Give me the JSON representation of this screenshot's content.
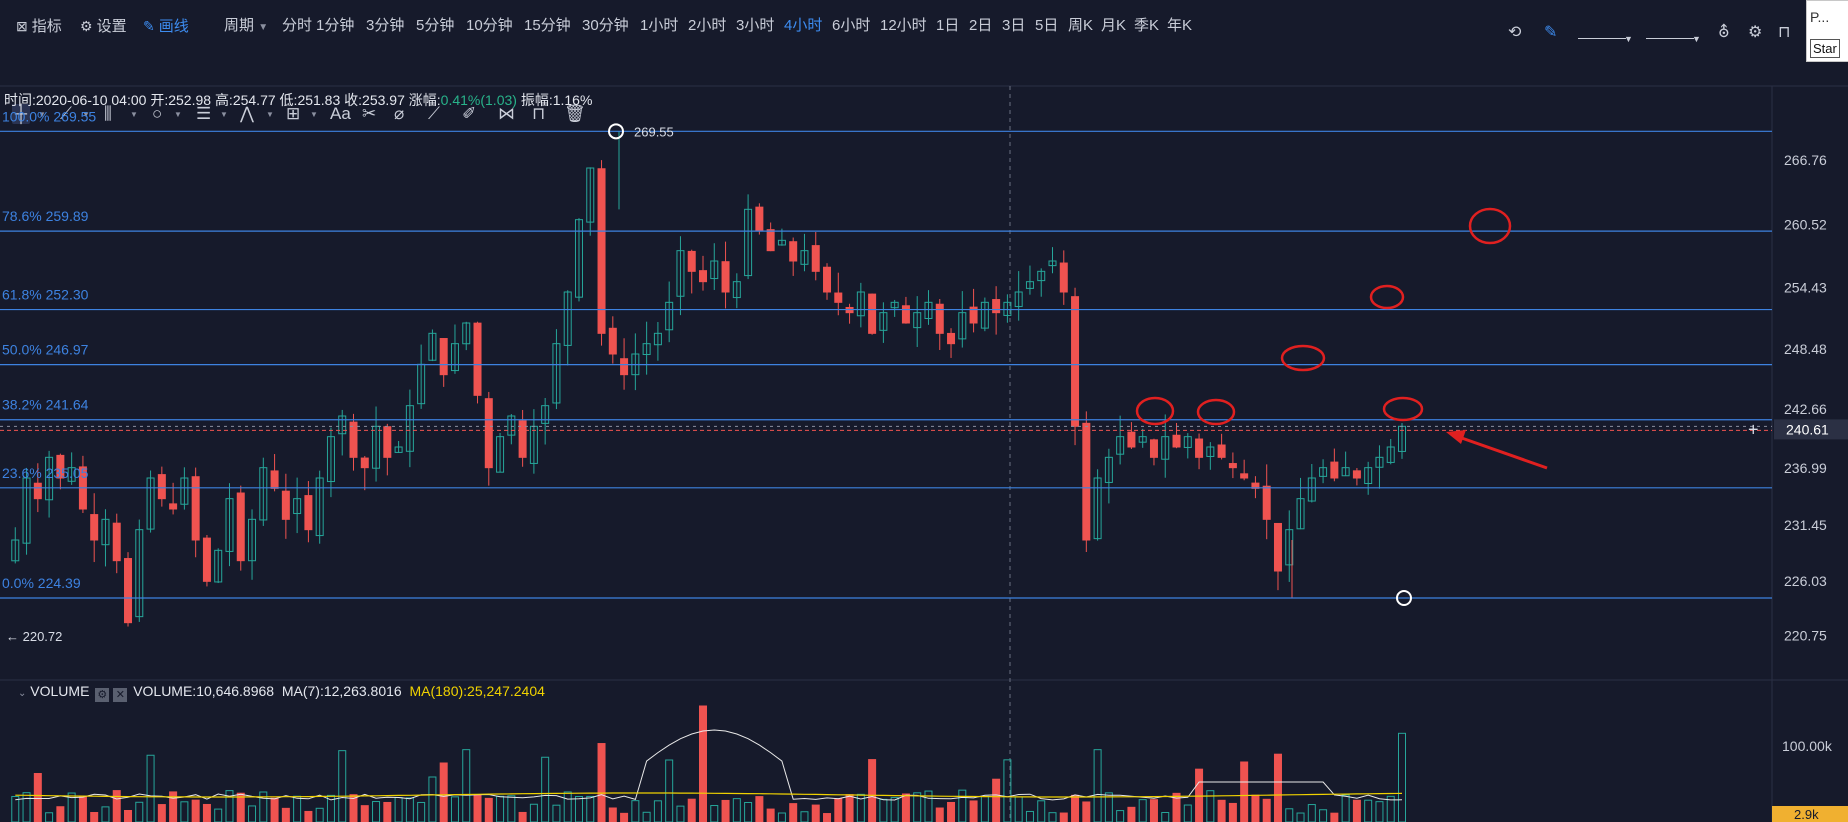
{
  "topbar": {
    "indicators_label": "指标",
    "settings_label": "设置",
    "draw_label": "画线",
    "period_label": "周期",
    "intervals": [
      "分时",
      "1分钟",
      "3分钟",
      "5分钟",
      "10分钟",
      "15分钟",
      "30分钟",
      "1小时",
      "2小时",
      "3小时",
      "4小时",
      "6小时",
      "12小时",
      "1日",
      "2日",
      "3日",
      "5日",
      "周K",
      "月K",
      "季K",
      "年K"
    ],
    "active_interval": "4小时"
  },
  "popup": {
    "text1": "P...",
    "text2": "Star"
  },
  "drawtools": {
    "icons": [
      "crosshair-icon",
      "trendline-icon",
      "parallel-lines-icon",
      "circle-icon",
      "fib-icon",
      "pattern-icon",
      "measure-icon",
      "text-icon",
      "magnet-icon",
      "eraser-icon",
      "ruler-icon",
      "brush-icon",
      "link-icon",
      "lock-icon",
      "trash-icon"
    ],
    "text_tool_label": "Aa"
  },
  "info": {
    "time_label": "时间:",
    "time": "2020-06-10 04:00",
    "open_label": "开:",
    "open": "252.98",
    "high_label": "高:",
    "high": "254.77",
    "low_label": "低:",
    "low": "251.83",
    "close_label": "收:",
    "close": "253.97",
    "change_label": "涨幅:",
    "change": "0.41%(1.03)",
    "amp_label": "振幅:",
    "amp": "1.16%"
  },
  "volume_header": {
    "title": "VOLUME",
    "volume": "VOLUME:10,646.8968",
    "ma7": "MA(7):12,263.8016",
    "ma180": "MA(180):25,247.2404"
  },
  "colors": {
    "up": "#26a69a",
    "down": "#ef5350",
    "fib": "#3d82e0",
    "bg": "#161a2b",
    "annotation": "#e02020"
  },
  "chart_data": {
    "type": "candlestick",
    "interval": "4小时",
    "ylim": [
      218,
      272
    ],
    "y_ticks": [
      "266.76",
      "260.52",
      "254.43",
      "248.48",
      "242.66",
      "236.99",
      "231.45",
      "226.03",
      "220.75"
    ],
    "current_price": "240.61",
    "fib_levels": [
      {
        "label": "100.0% 269.55",
        "value": 269.55
      },
      {
        "label": "78.6% 259.89",
        "value": 259.89
      },
      {
        "label": "61.8% 252.30",
        "value": 252.3
      },
      {
        "label": "50.0% 246.97",
        "value": 246.97
      },
      {
        "label": "38.2% 241.64",
        "value": 241.64
      },
      {
        "label": "23.6% 235.05",
        "value": 235.05
      },
      {
        "label": "0.0% 224.39",
        "value": 224.39
      }
    ],
    "high_marker": "269.55",
    "low_marker": "220.72",
    "volume_ticks": [
      "100.00k",
      "2.9k"
    ],
    "close_path": [
      228,
      230,
      236,
      234,
      238,
      236,
      237,
      233,
      230,
      232,
      228,
      222,
      231,
      236,
      234,
      233,
      236,
      230,
      226,
      229,
      234,
      228,
      232,
      237,
      235,
      232,
      234,
      231,
      236,
      240,
      242,
      238,
      237,
      241,
      238,
      239,
      243,
      247,
      250,
      246,
      249,
      251,
      244,
      237,
      240,
      242,
      238,
      241,
      243,
      249,
      254,
      261,
      266,
      250,
      248,
      246,
      248,
      249,
      250,
      253,
      258,
      256,
      255,
      257,
      254,
      255,
      262,
      260,
      258,
      259,
      257,
      258,
      256,
      254,
      253,
      252,
      254,
      250,
      252,
      253,
      251,
      252,
      253,
      250,
      249,
      252,
      251,
      253,
      252,
      253,
      254,
      255,
      256,
      257,
      254,
      241,
      230,
      236,
      238,
      240,
      239,
      240,
      238,
      240,
      239,
      240,
      238,
      239,
      238,
      237,
      236,
      235,
      232,
      227,
      231,
      234,
      236,
      237,
      236,
      237,
      236,
      237,
      238,
      239,
      241
    ]
  }
}
